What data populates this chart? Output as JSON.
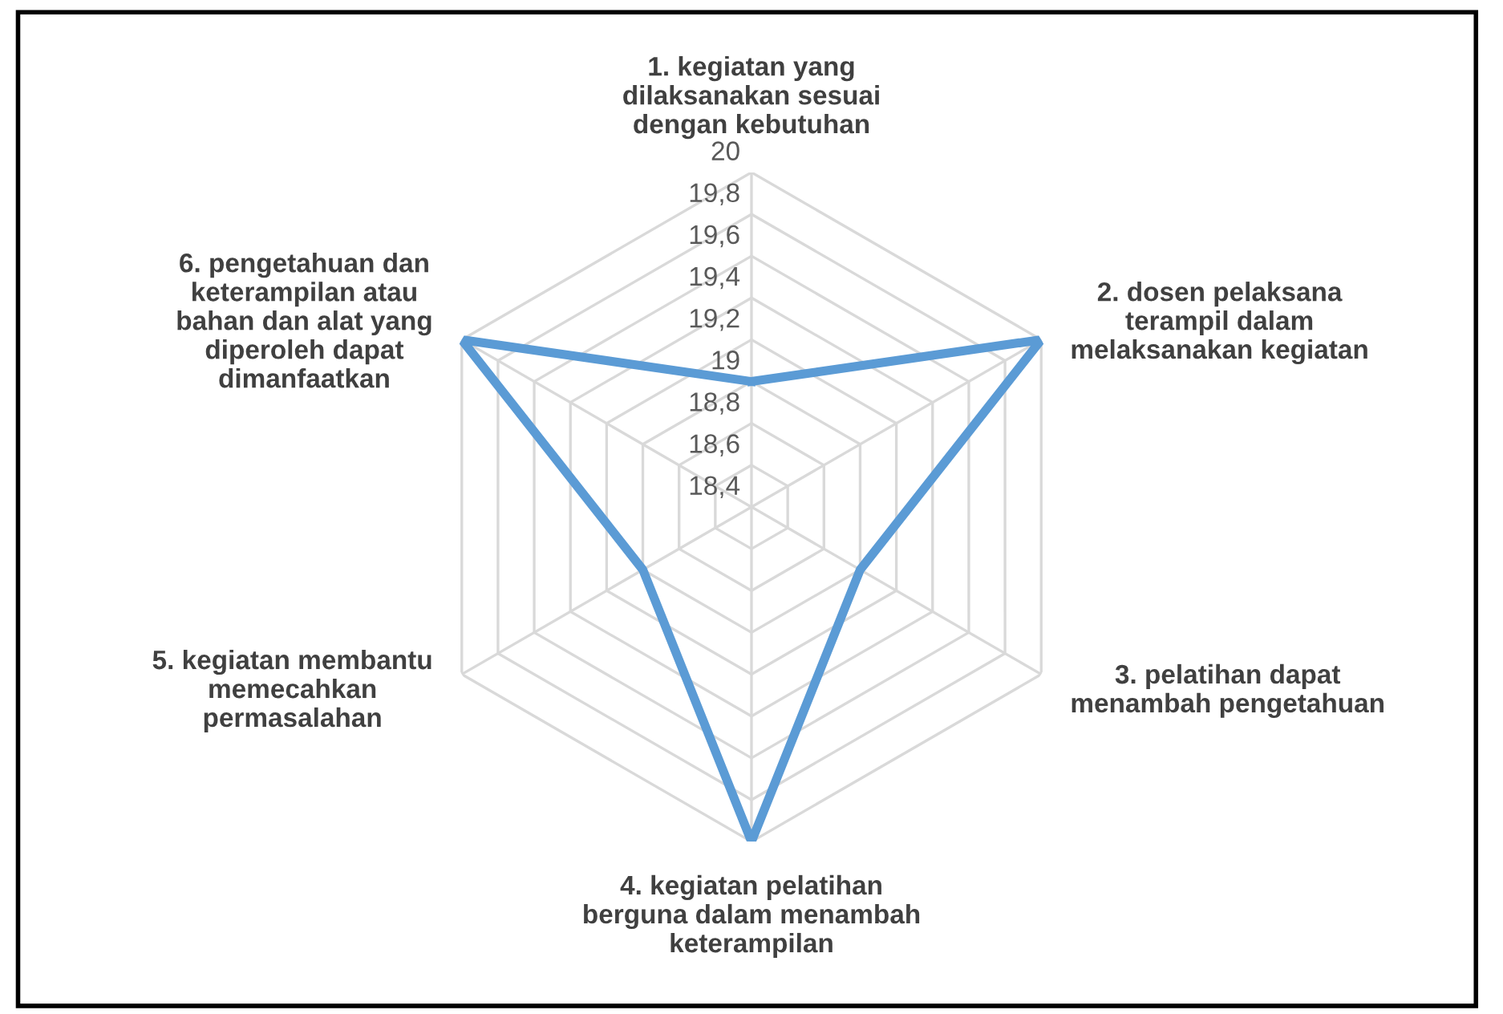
{
  "chart_data": {
    "type": "radar",
    "categories": [
      "1. kegiatan yang dilaksanakan sesuai dengan kebutuhan",
      "2. dosen pelaksana terampil dalam melaksanakan kegiatan",
      "3. pelatihan dapat menambah pengetahuan",
      "4. kegiatan pelatihan berguna dalam menambah keterampilan",
      "5. kegiatan membantu memecahkan permasalahan",
      "6. pengetahuan dan keterampilan atau bahan dan alat yang diperoleh dapat dimanfaatkan"
    ],
    "series": [
      {
        "color": "#5b9bd5",
        "values": [
          19,
          20,
          19,
          20,
          19,
          20
        ]
      }
    ],
    "ylim": [
      18.4,
      20
    ],
    "yticks": [
      {
        "value": 18.4,
        "label": "18,4"
      },
      {
        "value": 18.6,
        "label": "18,6"
      },
      {
        "value": 18.8,
        "label": "18,8"
      },
      {
        "value": 19,
        "label": "19"
      },
      {
        "value": 19.2,
        "label": "19,2"
      },
      {
        "value": 19.4,
        "label": "19,4"
      },
      {
        "value": 19.6,
        "label": "19,6"
      },
      {
        "value": 19.8,
        "label": "19,8"
      },
      {
        "value": 20,
        "label": "20"
      }
    ],
    "grid": true,
    "marker": "none",
    "line_style": "solid"
  }
}
